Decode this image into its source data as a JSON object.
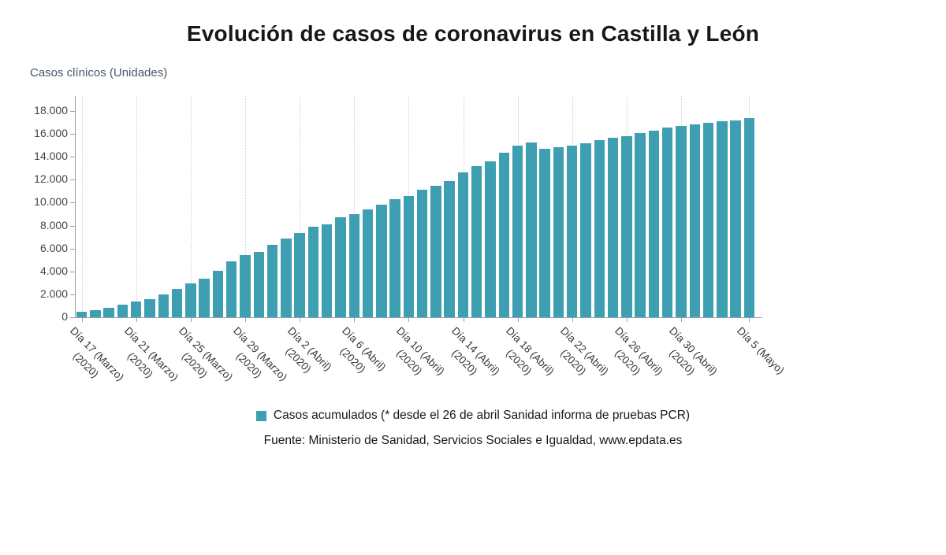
{
  "chart_data": {
    "type": "bar",
    "title": "Evolución de casos de coronavirus en Castilla y León",
    "ylabel": "Casos clínicos (Unidades)",
    "xlabel": "",
    "ylim": [
      0,
      18000
    ],
    "yticks": [
      0,
      2000,
      4000,
      6000,
      8000,
      10000,
      12000,
      14000,
      16000,
      18000
    ],
    "ytick_labels": [
      "0",
      "2.000",
      "4.000",
      "6.000",
      "8.000",
      "10.000",
      "12.000",
      "14.000",
      "16.000",
      "18.000"
    ],
    "grid": "vertical-dotted-at-labeled-ticks",
    "legend_position": "bottom",
    "bar_color": "#3e9fb3",
    "legend": {
      "label": "Casos acumulados (* desde el 26 de abril Sanidad informa de pruebas PCR)",
      "color": "#3e9fb3"
    },
    "source": "Fuente: Ministerio de Sanidad, Servicios Sociales e Igualdad, www.epdata.es",
    "categories": [
      "Día 17 (Marzo) (2020)",
      "Día 18 (Marzo) (2020)",
      "Día 19 (Marzo) (2020)",
      "Día 20 (Marzo) (2020)",
      "Día 21 (Marzo) (2020)",
      "Día 22 (Marzo) (2020)",
      "Día 23 (Marzo) (2020)",
      "Día 24 (Marzo) (2020)",
      "Día 25 (Marzo) (2020)",
      "Día 26 (Marzo) (2020)",
      "Día 27 (Marzo) (2020)",
      "Día 28 (Marzo) (2020)",
      "Día 29 (Marzo) (2020)",
      "Día 30 (Marzo) (2020)",
      "Día 31 (Marzo) (2020)",
      "Día 1 (Abril) (2020)",
      "Día 2 (Abril) (2020)",
      "Día 3 (Abril) (2020)",
      "Día 4 (Abril) (2020)",
      "Día 5 (Abril) (2020)",
      "Día 6 (Abril) (2020)",
      "Día 7 (Abril) (2020)",
      "Día 8 (Abril) (2020)",
      "Día 9 (Abril) (2020)",
      "Día 10 (Abril) (2020)",
      "Día 11 (Abril) (2020)",
      "Día 12 (Abril) (2020)",
      "Día 13 (Abril) (2020)",
      "Día 14 (Abril) (2020)",
      "Día 15 (Abril) (2020)",
      "Día 16 (Abril) (2020)",
      "Día 17 (Abril) (2020)",
      "Día 18 (Abril) (2020)",
      "Día 19 (Abril) (2020)",
      "Día 20 (Abril) (2020)",
      "Día 21 (Abril) (2020)",
      "Día 22 (Abril) (2020)",
      "Día 23 (Abril) (2020)",
      "Día 24 (Abril) (2020)",
      "Día 25 (Abril) (2020)",
      "Día 26 (Abril) (2020)",
      "Día 27 (Abril) (2020)",
      "Día 28 (Abril) (2020)",
      "Día 29 (Abril) (2020)",
      "Día 30 (Abril) (2020)",
      "Día 1 (Mayo) (2020)",
      "Día 2 (Mayo) (2020)",
      "Día 3 (Mayo) (2020)",
      "Día 4 (Mayo) (2020)",
      "Día 5 (Mayo) (2020)"
    ],
    "values": [
      459,
      616,
      797,
      1076,
      1350,
      1615,
      1968,
      2460,
      2940,
      3350,
      4082,
      4847,
      5414,
      5701,
      6314,
      6882,
      7355,
      7875,
      8118,
      8761,
      9013,
      9423,
      9851,
      10297,
      10608,
      11102,
      11507,
      11887,
      12628,
      13193,
      13619,
      14338,
      15000,
      15259,
      14700,
      14853,
      14977,
      15167,
      15461,
      15663,
      15802,
      16109,
      16281,
      16528,
      16681,
      16863,
      16942,
      17095,
      17180,
      17392
    ],
    "visible_xticks": [
      {
        "index": 0,
        "line1": "Día 17 (Marzo)",
        "line2": "(2020)"
      },
      {
        "index": 4,
        "line1": "Día 21 (Marzo)",
        "line2": "(2020)"
      },
      {
        "index": 8,
        "line1": "Día 25 (Marzo)",
        "line2": "(2020)"
      },
      {
        "index": 12,
        "line1": "Día 29 (Marzo)",
        "line2": "(2020)"
      },
      {
        "index": 16,
        "line1": "Día 2 (Abril)",
        "line2": "(2020)"
      },
      {
        "index": 20,
        "line1": "Día 6 (Abril)",
        "line2": "(2020)"
      },
      {
        "index": 24,
        "line1": "Día 10 (Abril)",
        "line2": "(2020)"
      },
      {
        "index": 28,
        "line1": "Día 14 (Abril)",
        "line2": "(2020)"
      },
      {
        "index": 32,
        "line1": "Día 18 (Abril)",
        "line2": "(2020)"
      },
      {
        "index": 36,
        "line1": "Día 22 (Abril)",
        "line2": "(2020)"
      },
      {
        "index": 40,
        "line1": "Día 26 (Abril)",
        "line2": "(2020)"
      },
      {
        "index": 44,
        "line1": "Día 30 (Abril)",
        "line2": "(2020)"
      },
      {
        "index": 49,
        "line1": "Día 5 (Mayo)",
        "line2": ""
      }
    ]
  }
}
